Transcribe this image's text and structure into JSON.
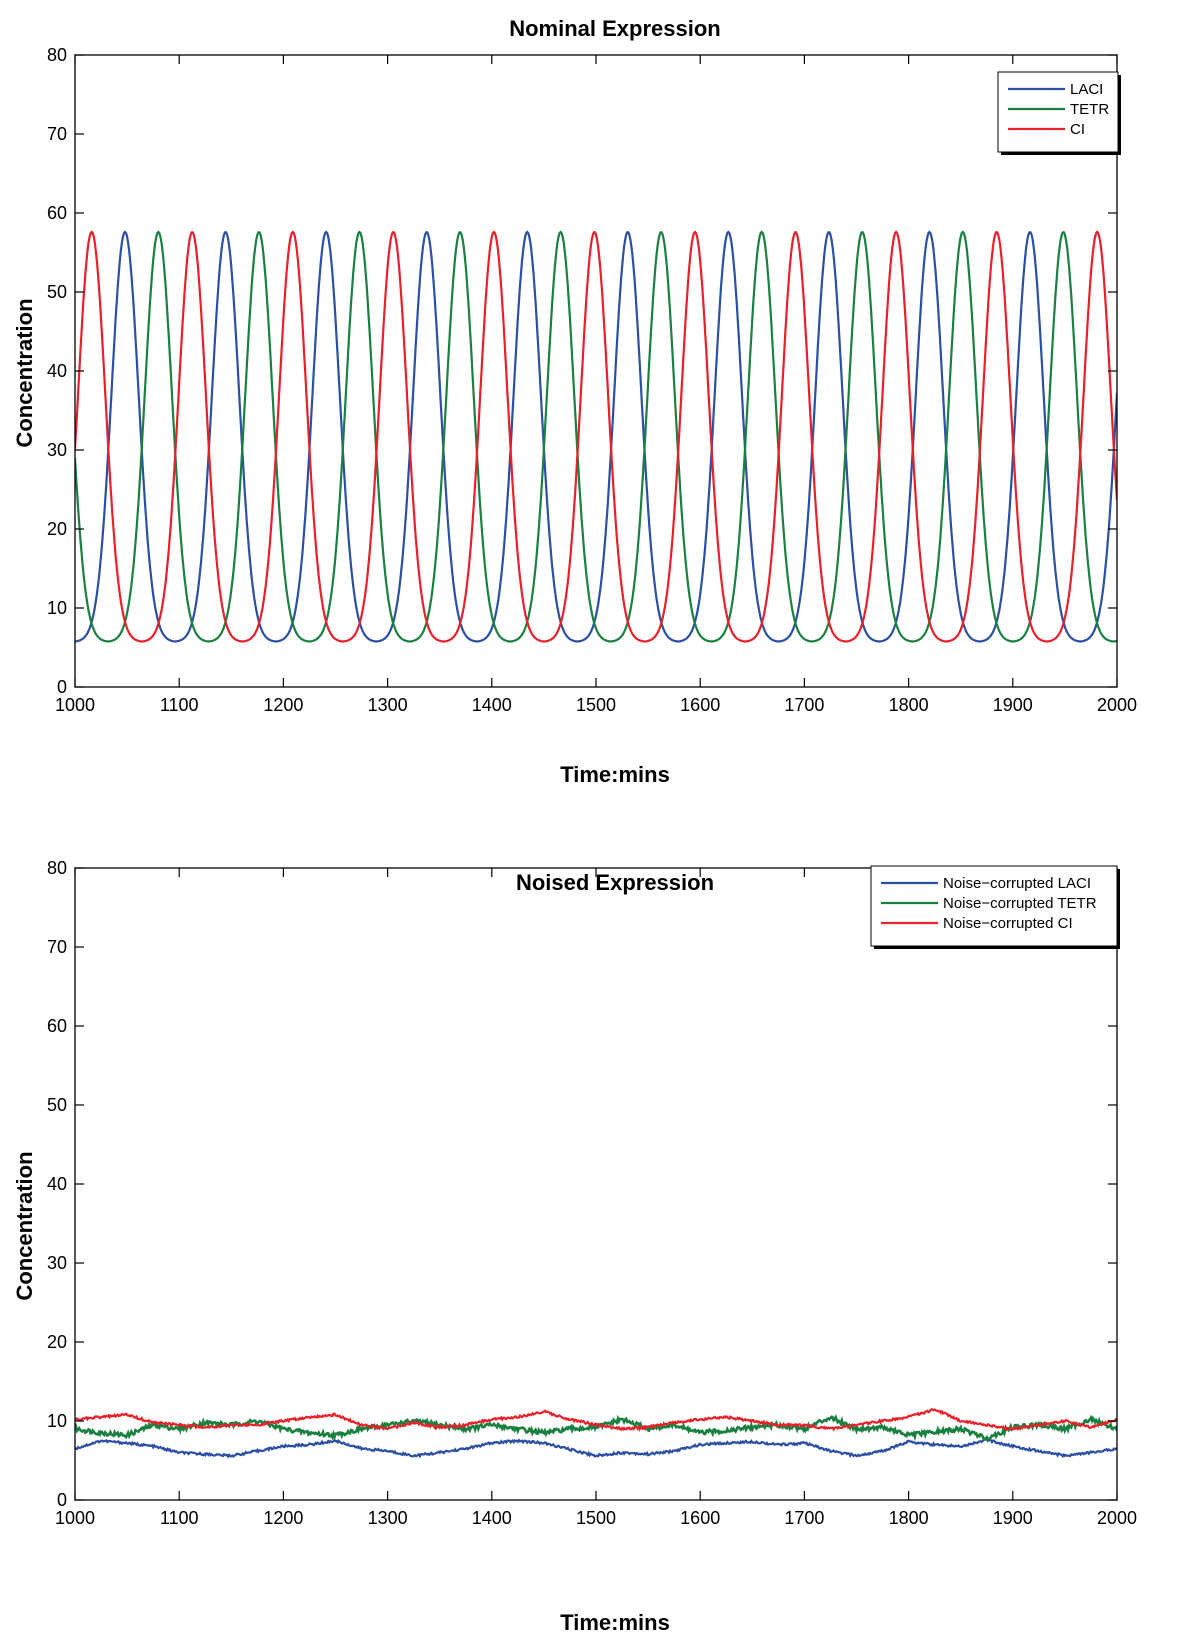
{
  "chart_data": [
    {
      "type": "line",
      "title": "Nominal Expression",
      "xlabel": "Time:mins",
      "ylabel": "Concentration",
      "xlim": [
        1000,
        2000
      ],
      "ylim": [
        0,
        80
      ],
      "xticks": [
        1000,
        1100,
        1200,
        1300,
        1400,
        1500,
        1600,
        1700,
        1800,
        1900,
        2000
      ],
      "yticks": [
        0,
        10,
        20,
        30,
        40,
        50,
        60,
        70,
        80
      ],
      "grid": false,
      "legend_position": "top-right",
      "series_kind": "oscillation",
      "series": [
        {
          "name": "LACI",
          "color": "#2b4fa3",
          "min": 5.7,
          "max": 57.6,
          "period": 96.5,
          "peak_times": [
            1048,
            1144.5,
            1241,
            1337.5,
            1434,
            1530.5,
            1627,
            1723.5,
            1820,
            1916.5
          ]
        },
        {
          "name": "TETR",
          "color": "#1a8040",
          "min": 5.7,
          "max": 57.6,
          "period": 96.5,
          "peak_times": [
            1080,
            1176.5,
            1273,
            1369.5,
            1466,
            1562.5,
            1659,
            1755.5,
            1852,
            1948.5
          ]
        },
        {
          "name": "CI",
          "color": "#e8202a",
          "min": 5.7,
          "max": 57.6,
          "period": 96.5,
          "peak_times": [
            1016,
            1112.5,
            1209,
            1305.5,
            1402,
            1498.5,
            1595,
            1691.5,
            1788,
            1884.5,
            1981
          ]
        }
      ]
    },
    {
      "type": "line",
      "title": "Noised Expression",
      "xlabel": "Time:mins",
      "ylabel": "Concentration",
      "xlim": [
        1000,
        2000
      ],
      "ylim": [
        0,
        80
      ],
      "xticks": [
        1000,
        1100,
        1200,
        1300,
        1400,
        1500,
        1600,
        1700,
        1800,
        1900,
        2000
      ],
      "yticks": [
        0,
        10,
        20,
        30,
        40,
        50,
        60,
        70,
        80
      ],
      "grid": false,
      "legend_position": "top-right",
      "series_kind": "noisy",
      "series": [
        {
          "name": "Noise−corrupted LACI",
          "color": "#2b4fa3",
          "x": [
            1000,
            1025,
            1050,
            1075,
            1100,
            1125,
            1150,
            1175,
            1200,
            1225,
            1250,
            1275,
            1300,
            1325,
            1350,
            1375,
            1400,
            1425,
            1450,
            1475,
            1500,
            1525,
            1550,
            1575,
            1600,
            1625,
            1650,
            1675,
            1700,
            1725,
            1750,
            1775,
            1800,
            1825,
            1850,
            1875,
            1900,
            1925,
            1950,
            1975,
            2000
          ],
          "y": [
            6.5,
            7.5,
            7.2,
            6.8,
            6.0,
            5.8,
            5.6,
            6.2,
            6.8,
            7.0,
            7.5,
            6.5,
            6.2,
            5.6,
            6.0,
            6.5,
            7.2,
            7.5,
            7.2,
            6.4,
            5.6,
            6.0,
            5.8,
            6.2,
            7.0,
            7.2,
            7.4,
            7.0,
            7.2,
            6.2,
            5.6,
            6.2,
            7.4,
            7.0,
            6.8,
            7.6,
            6.8,
            6.2,
            5.6,
            6.0,
            6.5
          ]
        },
        {
          "name": "Noise−corrupted TETR",
          "color": "#1a8040",
          "x": [
            1000,
            1025,
            1050,
            1075,
            1100,
            1125,
            1150,
            1175,
            1200,
            1225,
            1250,
            1275,
            1300,
            1325,
            1350,
            1375,
            1400,
            1425,
            1450,
            1475,
            1500,
            1525,
            1550,
            1575,
            1600,
            1625,
            1650,
            1675,
            1700,
            1725,
            1750,
            1775,
            1800,
            1825,
            1850,
            1875,
            1900,
            1925,
            1950,
            1975,
            2000
          ],
          "y": [
            9.0,
            8.5,
            8.2,
            9.5,
            9.0,
            9.8,
            9.5,
            10.0,
            9.0,
            8.5,
            8.2,
            9.0,
            9.5,
            10.0,
            9.5,
            9.0,
            9.5,
            9.0,
            8.5,
            9.0,
            9.2,
            10.2,
            9.0,
            9.5,
            8.5,
            8.8,
            9.2,
            9.5,
            9.0,
            10.5,
            9.0,
            9.2,
            8.2,
            8.6,
            9.0,
            7.8,
            9.2,
            9.5,
            9.0,
            10.2,
            9.0
          ]
        },
        {
          "name": "Noise−corrupted CI",
          "color": "#e8202a",
          "x": [
            1000,
            1025,
            1050,
            1075,
            1100,
            1125,
            1150,
            1175,
            1200,
            1225,
            1250,
            1275,
            1300,
            1325,
            1350,
            1375,
            1400,
            1425,
            1450,
            1475,
            1500,
            1525,
            1550,
            1575,
            1600,
            1625,
            1650,
            1675,
            1700,
            1725,
            1750,
            1775,
            1800,
            1825,
            1850,
            1875,
            1900,
            1925,
            1950,
            1975,
            2000
          ],
          "y": [
            10.2,
            10.5,
            10.8,
            9.8,
            9.5,
            9.2,
            9.5,
            9.5,
            10.0,
            10.5,
            10.8,
            9.5,
            9.0,
            9.8,
            9.2,
            9.5,
            10.2,
            10.5,
            11.2,
            10.2,
            9.5,
            9.0,
            9.2,
            9.8,
            10.2,
            10.5,
            10.0,
            9.5,
            9.5,
            9.0,
            9.5,
            10.0,
            10.5,
            11.5,
            10.0,
            9.5,
            9.0,
            9.5,
            10.0,
            9.2,
            10.2
          ]
        }
      ]
    }
  ]
}
